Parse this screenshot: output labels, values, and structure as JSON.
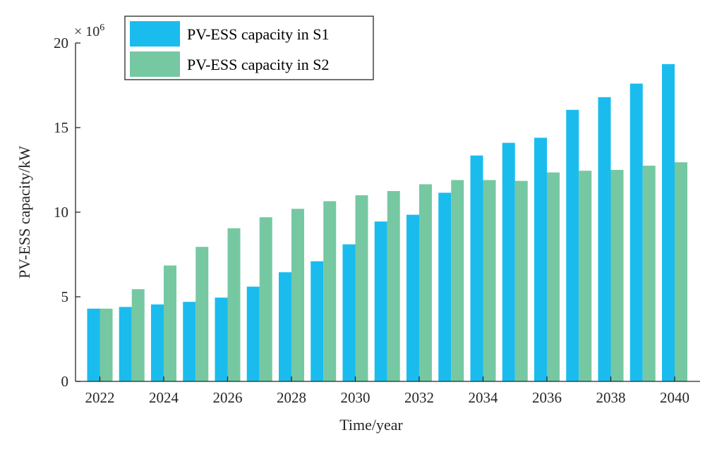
{
  "chart_data": {
    "type": "bar",
    "title": "",
    "xlabel": "Time/year",
    "ylabel": "PV-ESS capacity/kW",
    "y_exponent_label": "× 10",
    "y_exponent_power": "6",
    "ylim": [
      0,
      20
    ],
    "yticks": [
      0,
      5,
      10,
      15,
      20
    ],
    "ytick_labels": [
      "0",
      "5",
      "10",
      "15",
      "20"
    ],
    "categories": [
      "2022",
      "2023",
      "2024",
      "2025",
      "2026",
      "2027",
      "2028",
      "2029",
      "2030",
      "2031",
      "2032",
      "2033",
      "2034",
      "2035",
      "2036",
      "2037",
      "2038",
      "2039",
      "2040"
    ],
    "xtick_labels": [
      "2022",
      "2024",
      "2026",
      "2028",
      "2030",
      "2032",
      "2034",
      "2036",
      "2038",
      "2040"
    ],
    "legend_position": "top-left",
    "series": [
      {
        "name": "PV-ESS capacity in S1",
        "color": "#1ABCEE",
        "values": [
          4.3,
          4.4,
          4.55,
          4.7,
          4.95,
          5.6,
          6.45,
          7.1,
          8.1,
          9.45,
          9.85,
          11.15,
          13.35,
          14.1,
          14.4,
          16.05,
          16.8,
          17.6,
          18.75
        ]
      },
      {
        "name": "PV-ESS capacity in S2",
        "color": "#76C8A2",
        "values": [
          4.3,
          5.45,
          6.85,
          7.95,
          9.05,
          9.7,
          10.2,
          10.65,
          11.0,
          11.25,
          11.65,
          11.9,
          11.9,
          11.85,
          12.35,
          12.45,
          12.5,
          12.75,
          12.95
        ]
      }
    ]
  }
}
